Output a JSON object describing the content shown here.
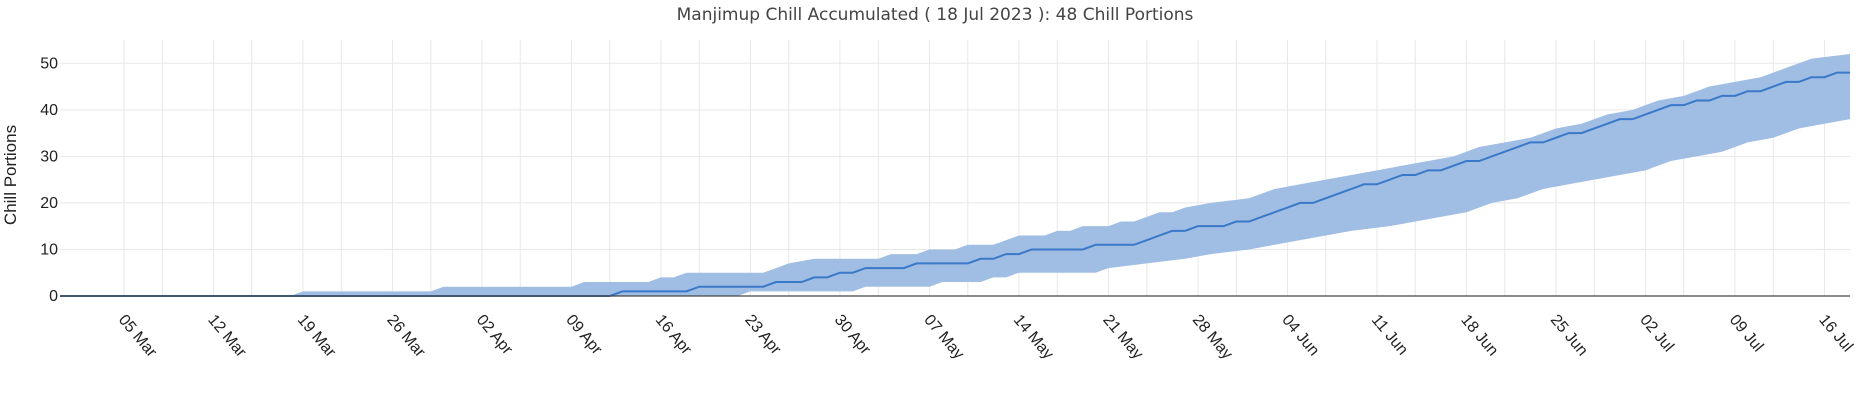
{
  "chart_data": {
    "type": "line",
    "title": "Manjimup Chill Accumulated ( 18 Jul 2023 ): 48 Chill Portions",
    "xlabel": "",
    "ylabel": "Chill Portions",
    "x_start": "2023-02-28",
    "x_end": "2023-07-18",
    "ylim": [
      0,
      55
    ],
    "yticks": [
      0,
      10,
      20,
      30,
      40,
      50
    ],
    "xticks": [
      {
        "date": "2023-03-05",
        "label": "05 Mar"
      },
      {
        "date": "2023-03-12",
        "label": "12 Mar"
      },
      {
        "date": "2023-03-19",
        "label": "19 Mar"
      },
      {
        "date": "2023-03-26",
        "label": "26 Mar"
      },
      {
        "date": "2023-04-02",
        "label": "02 Apr"
      },
      {
        "date": "2023-04-09",
        "label": "09 Apr"
      },
      {
        "date": "2023-04-16",
        "label": "16 Apr"
      },
      {
        "date": "2023-04-23",
        "label": "23 Apr"
      },
      {
        "date": "2023-04-30",
        "label": "30 Apr"
      },
      {
        "date": "2023-05-07",
        "label": "07 May"
      },
      {
        "date": "2023-05-14",
        "label": "14 May"
      },
      {
        "date": "2023-05-21",
        "label": "21 May"
      },
      {
        "date": "2023-05-28",
        "label": "28 May"
      },
      {
        "date": "2023-06-04",
        "label": "04 Jun"
      },
      {
        "date": "2023-06-11",
        "label": "11 Jun"
      },
      {
        "date": "2023-06-18",
        "label": "18 Jun"
      },
      {
        "date": "2023-06-25",
        "label": "25 Jun"
      },
      {
        "date": "2023-07-02",
        "label": "02 Jul"
      },
      {
        "date": "2023-07-09",
        "label": "09 Jul"
      },
      {
        "date": "2023-07-16",
        "label": "16 Jul"
      }
    ],
    "grid": true,
    "legend": "none",
    "series": [
      {
        "role": "line",
        "color": "#3a78c9",
        "points": [
          [
            "2023-02-28",
            0
          ],
          [
            "2023-04-12",
            0
          ],
          [
            "2023-04-13",
            1
          ],
          [
            "2023-04-18",
            1
          ],
          [
            "2023-04-19",
            2
          ],
          [
            "2023-04-24",
            2
          ],
          [
            "2023-04-25",
            3
          ],
          [
            "2023-04-27",
            3
          ],
          [
            "2023-04-28",
            4
          ],
          [
            "2023-04-29",
            4
          ],
          [
            "2023-04-30",
            5
          ],
          [
            "2023-05-01",
            5
          ],
          [
            "2023-05-02",
            6
          ],
          [
            "2023-05-05",
            6
          ],
          [
            "2023-05-06",
            7
          ],
          [
            "2023-05-10",
            7
          ],
          [
            "2023-05-11",
            8
          ],
          [
            "2023-05-12",
            8
          ],
          [
            "2023-05-13",
            9
          ],
          [
            "2023-05-14",
            9
          ],
          [
            "2023-05-15",
            10
          ],
          [
            "2023-05-19",
            10
          ],
          [
            "2023-05-20",
            11
          ],
          [
            "2023-05-23",
            11
          ],
          [
            "2023-05-24",
            12
          ],
          [
            "2023-05-25",
            13
          ],
          [
            "2023-05-26",
            14
          ],
          [
            "2023-05-27",
            14
          ],
          [
            "2023-05-28",
            15
          ],
          [
            "2023-05-30",
            15
          ],
          [
            "2023-05-31",
            16
          ],
          [
            "2023-06-01",
            16
          ],
          [
            "2023-06-02",
            17
          ],
          [
            "2023-06-03",
            18
          ],
          [
            "2023-06-04",
            19
          ],
          [
            "2023-06-05",
            20
          ],
          [
            "2023-06-06",
            20
          ],
          [
            "2023-06-07",
            21
          ],
          [
            "2023-06-08",
            22
          ],
          [
            "2023-06-09",
            23
          ],
          [
            "2023-06-10",
            24
          ],
          [
            "2023-06-11",
            24
          ],
          [
            "2023-06-12",
            25
          ],
          [
            "2023-06-13",
            26
          ],
          [
            "2023-06-14",
            26
          ],
          [
            "2023-06-15",
            27
          ],
          [
            "2023-06-16",
            27
          ],
          [
            "2023-06-17",
            28
          ],
          [
            "2023-06-18",
            29
          ],
          [
            "2023-06-19",
            29
          ],
          [
            "2023-06-20",
            30
          ],
          [
            "2023-06-21",
            31
          ],
          [
            "2023-06-22",
            32
          ],
          [
            "2023-06-23",
            33
          ],
          [
            "2023-06-24",
            33
          ],
          [
            "2023-06-25",
            34
          ],
          [
            "2023-06-26",
            35
          ],
          [
            "2023-06-27",
            35
          ],
          [
            "2023-06-28",
            36
          ],
          [
            "2023-06-29",
            37
          ],
          [
            "2023-06-30",
            38
          ],
          [
            "2023-07-01",
            38
          ],
          [
            "2023-07-02",
            39
          ],
          [
            "2023-07-03",
            40
          ],
          [
            "2023-07-04",
            41
          ],
          [
            "2023-07-05",
            41
          ],
          [
            "2023-07-06",
            42
          ],
          [
            "2023-07-07",
            42
          ],
          [
            "2023-07-08",
            43
          ],
          [
            "2023-07-09",
            43
          ],
          [
            "2023-07-10",
            44
          ],
          [
            "2023-07-11",
            44
          ],
          [
            "2023-07-12",
            45
          ],
          [
            "2023-07-13",
            46
          ],
          [
            "2023-07-14",
            46
          ],
          [
            "2023-07-15",
            47
          ],
          [
            "2023-07-16",
            47
          ],
          [
            "2023-07-17",
            48
          ],
          [
            "2023-07-18",
            48
          ]
        ]
      },
      {
        "role": "band-upper",
        "color": "#9bbbe3",
        "points": [
          [
            "2023-02-28",
            0
          ],
          [
            "2023-03-18",
            0
          ],
          [
            "2023-03-19",
            1
          ],
          [
            "2023-03-29",
            1
          ],
          [
            "2023-03-30",
            2
          ],
          [
            "2023-04-09",
            2
          ],
          [
            "2023-04-10",
            3
          ],
          [
            "2023-04-15",
            3
          ],
          [
            "2023-04-16",
            4
          ],
          [
            "2023-04-17",
            4
          ],
          [
            "2023-04-18",
            5
          ],
          [
            "2023-04-24",
            5
          ],
          [
            "2023-04-25",
            6
          ],
          [
            "2023-04-26",
            7
          ],
          [
            "2023-04-28",
            8
          ],
          [
            "2023-05-03",
            8
          ],
          [
            "2023-05-04",
            9
          ],
          [
            "2023-05-06",
            9
          ],
          [
            "2023-05-07",
            10
          ],
          [
            "2023-05-09",
            10
          ],
          [
            "2023-05-10",
            11
          ],
          [
            "2023-05-12",
            11
          ],
          [
            "2023-05-13",
            12
          ],
          [
            "2023-05-14",
            13
          ],
          [
            "2023-05-16",
            13
          ],
          [
            "2023-05-17",
            14
          ],
          [
            "2023-05-18",
            14
          ],
          [
            "2023-05-19",
            15
          ],
          [
            "2023-05-21",
            15
          ],
          [
            "2023-05-22",
            16
          ],
          [
            "2023-05-23",
            16
          ],
          [
            "2023-05-24",
            17
          ],
          [
            "2023-05-25",
            18
          ],
          [
            "2023-05-26",
            18
          ],
          [
            "2023-05-27",
            19
          ],
          [
            "2023-05-29",
            20
          ],
          [
            "2023-06-01",
            21
          ],
          [
            "2023-06-03",
            23
          ],
          [
            "2023-06-05",
            24
          ],
          [
            "2023-06-07",
            25
          ],
          [
            "2023-06-09",
            26
          ],
          [
            "2023-06-11",
            27
          ],
          [
            "2023-06-13",
            28
          ],
          [
            "2023-06-15",
            29
          ],
          [
            "2023-06-17",
            30
          ],
          [
            "2023-06-19",
            32
          ],
          [
            "2023-06-21",
            33
          ],
          [
            "2023-06-23",
            34
          ],
          [
            "2023-06-25",
            36
          ],
          [
            "2023-06-27",
            37
          ],
          [
            "2023-06-29",
            39
          ],
          [
            "2023-07-01",
            40
          ],
          [
            "2023-07-03",
            42
          ],
          [
            "2023-07-05",
            43
          ],
          [
            "2023-07-07",
            45
          ],
          [
            "2023-07-09",
            46
          ],
          [
            "2023-07-11",
            47
          ],
          [
            "2023-07-13",
            49
          ],
          [
            "2023-07-15",
            51
          ],
          [
            "2023-07-18",
            52
          ]
        ]
      },
      {
        "role": "band-lower",
        "color": "#9bbbe3",
        "points": [
          [
            "2023-02-28",
            0
          ],
          [
            "2023-04-22",
            0
          ],
          [
            "2023-04-23",
            1
          ],
          [
            "2023-05-01",
            1
          ],
          [
            "2023-05-02",
            2
          ],
          [
            "2023-05-07",
            2
          ],
          [
            "2023-05-08",
            3
          ],
          [
            "2023-05-11",
            3
          ],
          [
            "2023-05-12",
            4
          ],
          [
            "2023-05-13",
            4
          ],
          [
            "2023-05-14",
            5
          ],
          [
            "2023-05-20",
            5
          ],
          [
            "2023-05-21",
            6
          ],
          [
            "2023-05-24",
            7
          ],
          [
            "2023-05-27",
            8
          ],
          [
            "2023-05-29",
            9
          ],
          [
            "2023-06-01",
            10
          ],
          [
            "2023-06-03",
            11
          ],
          [
            "2023-06-05",
            12
          ],
          [
            "2023-06-07",
            13
          ],
          [
            "2023-06-09",
            14
          ],
          [
            "2023-06-12",
            15
          ],
          [
            "2023-06-14",
            16
          ],
          [
            "2023-06-16",
            17
          ],
          [
            "2023-06-18",
            18
          ],
          [
            "2023-06-20",
            20
          ],
          [
            "2023-06-22",
            21
          ],
          [
            "2023-06-24",
            23
          ],
          [
            "2023-06-26",
            24
          ],
          [
            "2023-06-28",
            25
          ],
          [
            "2023-06-30",
            26
          ],
          [
            "2023-07-02",
            27
          ],
          [
            "2023-07-04",
            29
          ],
          [
            "2023-07-06",
            30
          ],
          [
            "2023-07-08",
            31
          ],
          [
            "2023-07-10",
            33
          ],
          [
            "2023-07-12",
            34
          ],
          [
            "2023-07-14",
            36
          ],
          [
            "2023-07-16",
            37
          ],
          [
            "2023-07-18",
            38
          ]
        ]
      }
    ]
  }
}
